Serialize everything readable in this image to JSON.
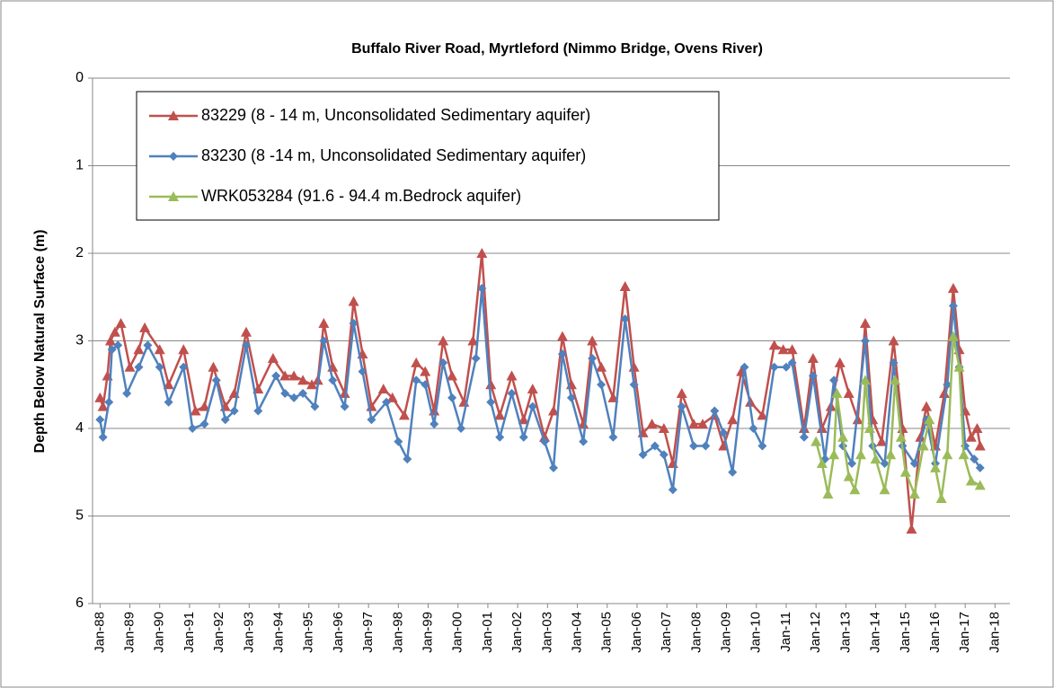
{
  "chart_data": {
    "type": "line",
    "title": "Buffalo River Road, Myrtleford (Nimmo Bridge, Ovens River)",
    "y_label": "Depth Below Natural Surface (m)",
    "ylim": [
      6,
      0
    ],
    "yticks": [
      0,
      1,
      2,
      3,
      4,
      5,
      6
    ],
    "grid": true,
    "xlim": [
      1987.75,
      2018.5
    ],
    "xticks": [
      {
        "value": 1988,
        "label": "Jan-88"
      },
      {
        "value": 1989,
        "label": "Jan-89"
      },
      {
        "value": 1990,
        "label": "Jan-90"
      },
      {
        "value": 1991,
        "label": "Jan-91"
      },
      {
        "value": 1992,
        "label": "Jan-92"
      },
      {
        "value": 1993,
        "label": "Jan-93"
      },
      {
        "value": 1994,
        "label": "Jan-94"
      },
      {
        "value": 1995,
        "label": "Jan-95"
      },
      {
        "value": 1996,
        "label": "Jan-96"
      },
      {
        "value": 1997,
        "label": "Jan-97"
      },
      {
        "value": 1998,
        "label": "Jan-98"
      },
      {
        "value": 1999,
        "label": "Jan-99"
      },
      {
        "value": 2000,
        "label": "Jan-00"
      },
      {
        "value": 2001,
        "label": "Jan-01"
      },
      {
        "value": 2002,
        "label": "Jan-02"
      },
      {
        "value": 2003,
        "label": "Jan-03"
      },
      {
        "value": 2004,
        "label": "Jan-04"
      },
      {
        "value": 2005,
        "label": "Jan-05"
      },
      {
        "value": 2006,
        "label": "Jan-06"
      },
      {
        "value": 2007,
        "label": "Jan-07"
      },
      {
        "value": 2008,
        "label": "Jan-08"
      },
      {
        "value": 2009,
        "label": "Jan-09"
      },
      {
        "value": 2010,
        "label": "Jan-10"
      },
      {
        "value": 2011,
        "label": "Jan-11"
      },
      {
        "value": 2012,
        "label": "Jan-12"
      },
      {
        "value": 2013,
        "label": "Jan-13"
      },
      {
        "value": 2014,
        "label": "Jan-14"
      },
      {
        "value": 2015,
        "label": "Jan-15"
      },
      {
        "value": 2016,
        "label": "Jan-16"
      },
      {
        "value": 2017,
        "label": "Jan-17"
      },
      {
        "value": 2018,
        "label": "Jan-18"
      }
    ],
    "legend": "upper-left",
    "series": [
      {
        "name": "83229 (8 - 14 m, Unconsolidated Sedimentary aquifer)",
        "color": "#c0504d",
        "marker": "triangle",
        "x": [
          1988.0,
          1988.1,
          1988.25,
          1988.35,
          1988.5,
          1988.7,
          1989.0,
          1989.3,
          1989.5,
          1990.0,
          1990.3,
          1990.8,
          1991.2,
          1991.5,
          1991.8,
          1992.2,
          1992.5,
          1992.9,
          1993.3,
          1993.8,
          1994.2,
          1994.5,
          1994.8,
          1995.1,
          1995.3,
          1995.5,
          1995.8,
          1996.2,
          1996.5,
          1996.8,
          1997.1,
          1997.5,
          1997.8,
          1998.2,
          1998.6,
          1998.9,
          1999.2,
          1999.5,
          1999.8,
          2000.2,
          2000.5,
          2000.8,
          2001.1,
          2001.4,
          2001.8,
          2002.2,
          2002.5,
          2002.9,
          2003.2,
          2003.5,
          2003.8,
          2004.2,
          2004.5,
          2004.8,
          2005.2,
          2005.6,
          2005.9,
          2006.2,
          2006.5,
          2006.9,
          2007.2,
          2007.5,
          2007.9,
          2008.2,
          2008.6,
          2008.9,
          2009.2,
          2009.5,
          2009.8,
          2010.2,
          2010.6,
          2010.9,
          2011.2,
          2011.6,
          2011.9,
          2012.2,
          2012.5,
          2012.8,
          2013.1,
          2013.4,
          2013.65,
          2013.9,
          2014.2,
          2014.6,
          2014.9,
          2015.2,
          2015.5,
          2015.7,
          2016.0,
          2016.3,
          2016.6,
          2016.8,
          2017.0,
          2017.2,
          2017.4,
          2017.5
        ],
        "values": [
          3.65,
          3.75,
          3.4,
          3.0,
          2.9,
          2.8,
          3.3,
          3.1,
          2.85,
          3.1,
          3.5,
          3.1,
          3.8,
          3.75,
          3.3,
          3.75,
          3.6,
          2.9,
          3.55,
          3.2,
          3.4,
          3.4,
          3.45,
          3.5,
          3.45,
          2.8,
          3.3,
          3.6,
          2.55,
          3.15,
          3.75,
          3.55,
          3.65,
          3.85,
          3.25,
          3.35,
          3.8,
          3.0,
          3.4,
          3.7,
          3.0,
          2.0,
          3.5,
          3.85,
          3.4,
          3.9,
          3.55,
          4.1,
          3.8,
          2.95,
          3.5,
          3.95,
          3.0,
          3.3,
          3.65,
          2.38,
          3.3,
          4.05,
          3.95,
          4.0,
          4.4,
          3.6,
          3.95,
          3.95,
          3.85,
          4.2,
          3.9,
          3.35,
          3.7,
          3.85,
          3.05,
          3.1,
          3.1,
          4.0,
          3.2,
          4.0,
          3.75,
          3.25,
          3.6,
          3.9,
          2.8,
          3.9,
          4.15,
          3.0,
          4.0,
          5.15,
          4.1,
          3.75,
          4.2,
          3.6,
          2.4,
          3.1,
          3.8,
          4.1,
          4.0,
          4.2
        ]
      },
      {
        "name": "83230 (8 -14 m, Unconsolidated Sedimentary aquifer)",
        "color": "#4f81bd",
        "marker": "diamond",
        "x": [
          1988.0,
          1988.1,
          1988.3,
          1988.4,
          1988.6,
          1988.9,
          1989.3,
          1989.6,
          1990.0,
          1990.3,
          1990.8,
          1991.1,
          1991.5,
          1991.9,
          1992.2,
          1992.5,
          1992.9,
          1993.3,
          1993.9,
          1994.2,
          1994.5,
          1994.8,
          1995.2,
          1995.5,
          1995.8,
          1996.2,
          1996.5,
          1996.8,
          1997.1,
          1997.6,
          1998.0,
          1998.3,
          1998.6,
          1998.9,
          1999.2,
          1999.5,
          1999.8,
          2000.1,
          2000.6,
          2000.8,
          2001.1,
          2001.4,
          2001.8,
          2002.2,
          2002.5,
          2002.9,
          2003.2,
          2003.5,
          2003.8,
          2004.2,
          2004.5,
          2004.8,
          2005.2,
          2005.6,
          2005.9,
          2006.2,
          2006.6,
          2006.9,
          2007.2,
          2007.5,
          2007.9,
          2008.3,
          2008.6,
          2008.9,
          2009.2,
          2009.6,
          2009.9,
          2010.2,
          2010.6,
          2011.0,
          2011.2,
          2011.6,
          2011.9,
          2012.3,
          2012.6,
          2012.9,
          2013.2,
          2013.65,
          2013.9,
          2014.3,
          2014.6,
          2014.9,
          2015.3,
          2015.7,
          2016.0,
          2016.4,
          2016.6,
          2016.8,
          2017.0,
          2017.3,
          2017.5
        ],
        "values": [
          3.9,
          4.1,
          3.7,
          3.1,
          3.05,
          3.6,
          3.3,
          3.05,
          3.3,
          3.7,
          3.3,
          4.0,
          3.95,
          3.45,
          3.9,
          3.8,
          3.05,
          3.8,
          3.4,
          3.6,
          3.65,
          3.6,
          3.75,
          3.0,
          3.45,
          3.75,
          2.8,
          3.35,
          3.9,
          3.7,
          4.15,
          4.35,
          3.45,
          3.5,
          3.95,
          3.25,
          3.65,
          4.0,
          3.2,
          2.4,
          3.7,
          4.1,
          3.6,
          4.1,
          3.75,
          4.15,
          4.45,
          3.15,
          3.65,
          4.15,
          3.2,
          3.5,
          4.1,
          2.75,
          3.5,
          4.3,
          4.2,
          4.3,
          4.7,
          3.75,
          4.2,
          4.2,
          3.8,
          4.05,
          4.5,
          3.3,
          4.0,
          4.2,
          3.3,
          3.3,
          3.25,
          4.1,
          3.4,
          4.35,
          3.45,
          4.2,
          4.4,
          3.0,
          4.2,
          4.4,
          3.25,
          4.2,
          4.4,
          3.9,
          4.4,
          3.5,
          2.6,
          3.3,
          4.2,
          4.35,
          4.45
        ]
      },
      {
        "name": "WRK053284 (91.6 - 94.4 m.Bedrock aquifer)",
        "color": "#9bbb59",
        "marker": "triangle",
        "x": [
          2012.0,
          2012.2,
          2012.4,
          2012.6,
          2012.7,
          2012.9,
          2013.1,
          2013.3,
          2013.5,
          2013.65,
          2013.8,
          2014.0,
          2014.3,
          2014.5,
          2014.65,
          2014.85,
          2015.0,
          2015.3,
          2015.6,
          2015.8,
          2016.0,
          2016.2,
          2016.4,
          2016.6,
          2016.8,
          2016.95,
          2017.2,
          2017.5
        ],
        "values": [
          4.15,
          4.4,
          4.75,
          4.3,
          3.6,
          4.1,
          4.55,
          4.7,
          4.3,
          3.45,
          4.0,
          4.35,
          4.7,
          4.3,
          3.45,
          4.1,
          4.5,
          4.75,
          4.2,
          3.9,
          4.45,
          4.8,
          4.3,
          2.95,
          3.3,
          4.3,
          4.6,
          4.65
        ]
      }
    ]
  }
}
